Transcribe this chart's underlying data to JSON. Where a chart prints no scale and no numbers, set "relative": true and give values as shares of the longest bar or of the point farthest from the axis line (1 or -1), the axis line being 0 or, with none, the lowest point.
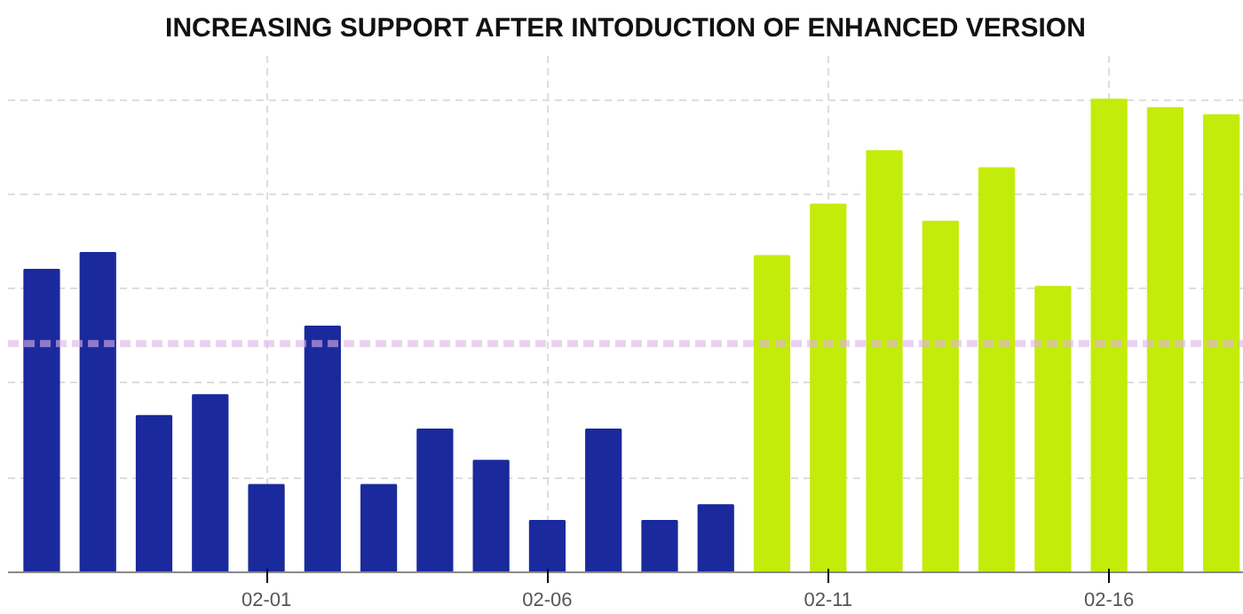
{
  "chart_data": {
    "type": "bar",
    "title": "INCREASING SUPPORT AFTER INTODUCTION OF ENHANCED VERSION",
    "relative": true,
    "categories": [
      null,
      null,
      null,
      null,
      "02-01",
      null,
      null,
      null,
      null,
      "02-06",
      null,
      null,
      null,
      null,
      "02-11",
      null,
      null,
      null,
      null,
      "02-16",
      null,
      null
    ],
    "values": [
      0.64,
      0.676,
      0.331,
      0.375,
      0.185,
      0.52,
      0.185,
      0.302,
      0.236,
      0.109,
      0.302,
      0.109,
      0.142,
      0.669,
      0.778,
      0.891,
      0.742,
      0.855,
      0.604,
      1,
      0.982,
      0.967
    ],
    "colors": [
      "#1a2a9c",
      "#1a2a9c",
      "#1a2a9c",
      "#1a2a9c",
      "#1a2a9c",
      "#1a2a9c",
      "#1a2a9c",
      "#1a2a9c",
      "#1a2a9c",
      "#1a2a9c",
      "#1a2a9c",
      "#1a2a9c",
      "#1a2a9c",
      "#c4ec0a",
      "#c4ec0a",
      "#c4ec0a",
      "#c4ec0a",
      "#c4ec0a",
      "#c4ec0a",
      "#c4ec0a",
      "#c4ec0a",
      "#c4ec0a"
    ],
    "ref_lines": [
      {
        "axis": "y",
        "value": 0.484,
        "label": null,
        "color": "#e0b0e8",
        "line_style": "dashed"
      }
    ],
    "grid": true
  }
}
